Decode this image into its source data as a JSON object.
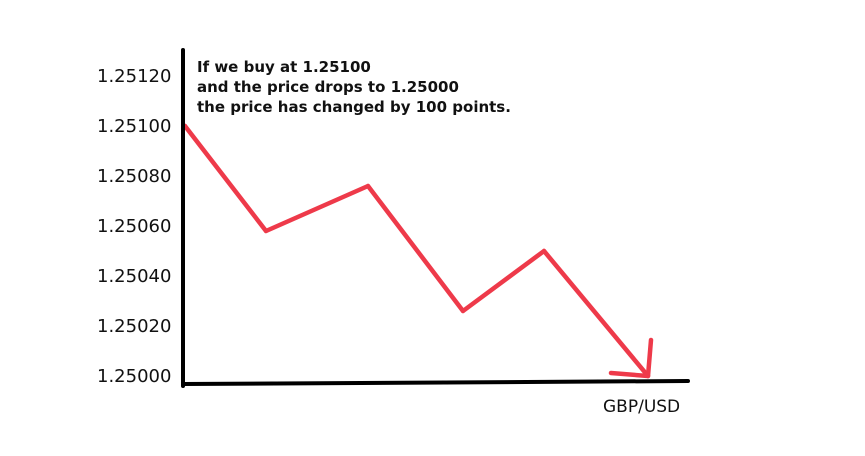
{
  "chart_data": {
    "type": "line",
    "title": "",
    "xlabel": "GBP/USD",
    "ylabel": "",
    "ylim": [
      1.25,
      1.2512
    ],
    "y_ticks": [
      "1.25120",
      "1.25100",
      "1.25080",
      "1.25060",
      "1.25040",
      "1.25020",
      "1.25000"
    ],
    "grid": false,
    "legend": "none",
    "annotation": [
      "If we buy at 1.25100",
      "and the price drops to 1.25000",
      "the price has changed by 100 points."
    ],
    "series": [
      {
        "x": [
          0,
          1,
          2,
          3,
          4,
          5
        ],
        "values": [
          1.251,
          1.25058,
          1.25076,
          1.25026,
          1.2505,
          1.25
        ]
      }
    ],
    "end_marker": "arrowhead",
    "colors": {
      "line": "#ee3a4a",
      "axis": "#000000",
      "text": "#111111"
    }
  }
}
